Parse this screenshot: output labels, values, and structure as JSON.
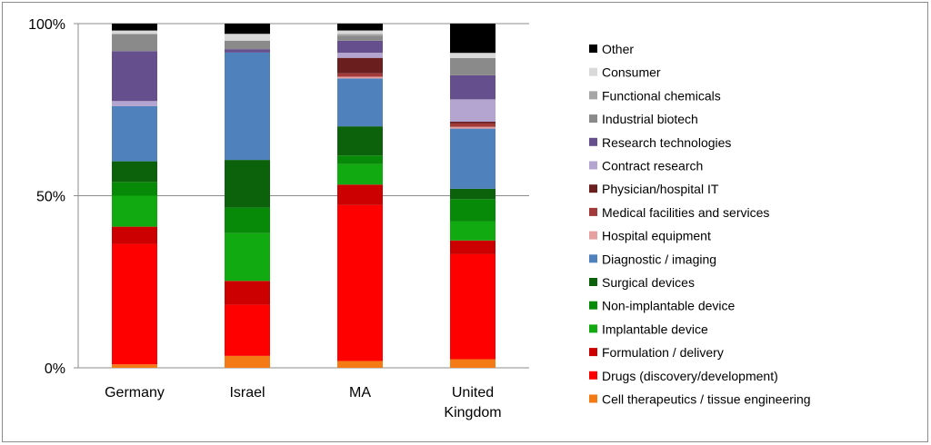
{
  "chart_data": {
    "type": "stacked-bar-100",
    "title": "",
    "xlabel": "",
    "ylabel": "",
    "ylim": [
      0,
      100
    ],
    "yticks": [
      "0%",
      "50%",
      "100%"
    ],
    "legend_position": "right",
    "categories": [
      "Germany",
      "Israel",
      "MA",
      "United Kingdom"
    ],
    "series": [
      {
        "name": "Cell therapeutics / tissue engineering",
        "color": "#F47A16",
        "values": [
          1,
          3.5,
          2,
          2.5
        ]
      },
      {
        "name": "Drugs (discovery/development)",
        "color": "#FF0000",
        "values": [
          35,
          15,
          45.5,
          30.5
        ]
      },
      {
        "name": "Formulation / delivery",
        "color": "#CC0000",
        "values": [
          5,
          7,
          6,
          4
        ]
      },
      {
        "name": "Implantable device",
        "color": "#11AA11",
        "values": [
          9,
          14,
          6,
          5.5
        ]
      },
      {
        "name": "Non-implantable device",
        "color": "#078A07",
        "values": [
          4,
          7.5,
          2.5,
          6.5
        ]
      },
      {
        "name": "Surgical devices",
        "color": "#0B620B",
        "values": [
          6,
          14,
          8.5,
          3
        ]
      },
      {
        "name": "Diagnostic / imaging",
        "color": "#4F81BD",
        "values": [
          16,
          31.5,
          14,
          17.5
        ]
      },
      {
        "name": "Hospital equipment",
        "color": "#E6A0A0",
        "values": [
          0,
          0,
          0.5,
          0.5
        ]
      },
      {
        "name": "Medical facilities and services",
        "color": "#A33A3A",
        "values": [
          0,
          0,
          1,
          1
        ]
      },
      {
        "name": "Physician/hospital IT",
        "color": "#6A1E1E",
        "values": [
          0,
          0,
          4.5,
          0.5
        ]
      },
      {
        "name": "Contract research",
        "color": "#B4A5D0",
        "values": [
          1.5,
          0,
          1.5,
          6.5
        ]
      },
      {
        "name": "Research technologies",
        "color": "#654F8C",
        "values": [
          14.5,
          1,
          3.5,
          7
        ]
      },
      {
        "name": "Industrial biotech",
        "color": "#8A8A8A",
        "values": [
          5,
          2.5,
          1.5,
          5
        ]
      },
      {
        "name": "Functional chemicals",
        "color": "#A6A6A6",
        "values": [
          0,
          0,
          0.5,
          0
        ]
      },
      {
        "name": "Consumer",
        "color": "#D9D9D9",
        "values": [
          1,
          2,
          1,
          1.5
        ]
      },
      {
        "name": "Other",
        "color": "#000000",
        "values": [
          2,
          3,
          2,
          8.5
        ]
      }
    ]
  }
}
